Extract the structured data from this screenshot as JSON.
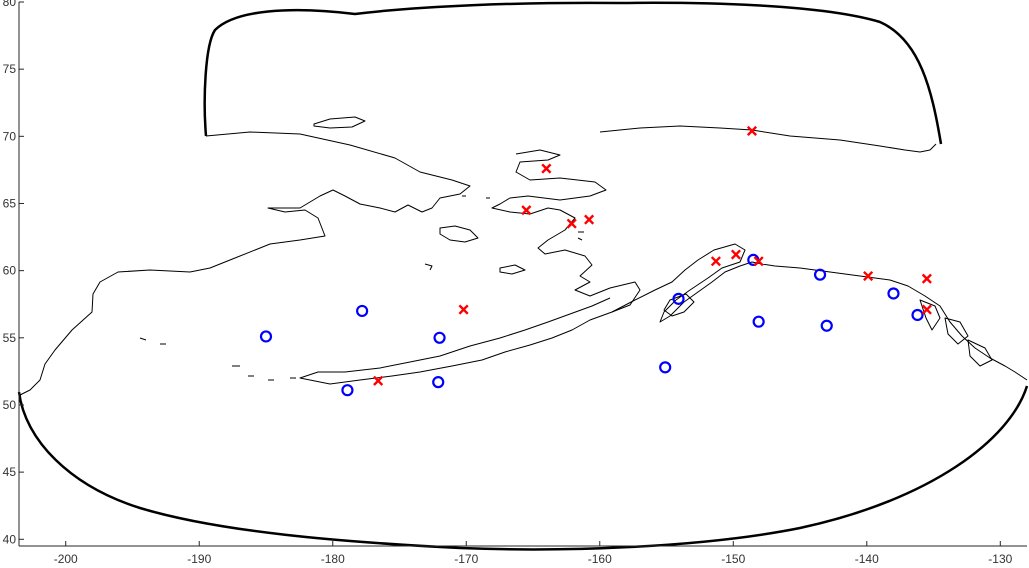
{
  "chart_data": {
    "type": "scatter",
    "title": "",
    "xlabel": "",
    "ylabel": "",
    "xlim": [
      -203.5,
      -128
    ],
    "ylim": [
      39.5,
      80
    ],
    "xticks": [
      -200,
      -190,
      -180,
      -170,
      -160,
      -150,
      -140,
      -130
    ],
    "yticks": [
      40,
      45,
      50,
      55,
      60,
      65,
      70,
      75,
      80
    ],
    "xtick_labels": [
      "-200",
      "-190",
      "-180",
      "-170",
      "-160",
      "-150",
      "-140",
      "-130"
    ],
    "ytick_labels": [
      "40",
      "45",
      "50",
      "55",
      "60",
      "65",
      "70",
      "75",
      "80"
    ],
    "series": [
      {
        "marker": "circle",
        "color": "#0000ff",
        "points": [
          [
            -185.0,
            55.1
          ],
          [
            -177.8,
            57.0
          ],
          [
            -178.9,
            51.1
          ],
          [
            -172.0,
            55.0
          ],
          [
            -172.1,
            51.7
          ],
          [
            -155.1,
            52.8
          ],
          [
            -154.1,
            57.9
          ],
          [
            -148.5,
            60.8
          ],
          [
            -148.1,
            56.2
          ],
          [
            -143.5,
            59.7
          ],
          [
            -143.0,
            55.9
          ],
          [
            -138.0,
            58.3
          ],
          [
            -136.2,
            56.7
          ]
        ]
      },
      {
        "marker": "x",
        "color": "#ff0000",
        "points": [
          [
            -164.0,
            67.6
          ],
          [
            -148.6,
            70.4
          ],
          [
            -165.5,
            64.5
          ],
          [
            -162.1,
            63.5
          ],
          [
            -160.8,
            63.8
          ],
          [
            -170.2,
            57.1
          ],
          [
            -176.6,
            51.8
          ],
          [
            -151.3,
            60.7
          ],
          [
            -149.8,
            61.2
          ],
          [
            -148.1,
            60.7
          ],
          [
            -139.9,
            59.6
          ],
          [
            -135.5,
            59.4
          ],
          [
            -135.5,
            57.1
          ]
        ]
      }
    ],
    "grid": false,
    "legend": "none",
    "basemap": "coastlines",
    "region_boundary": true
  }
}
